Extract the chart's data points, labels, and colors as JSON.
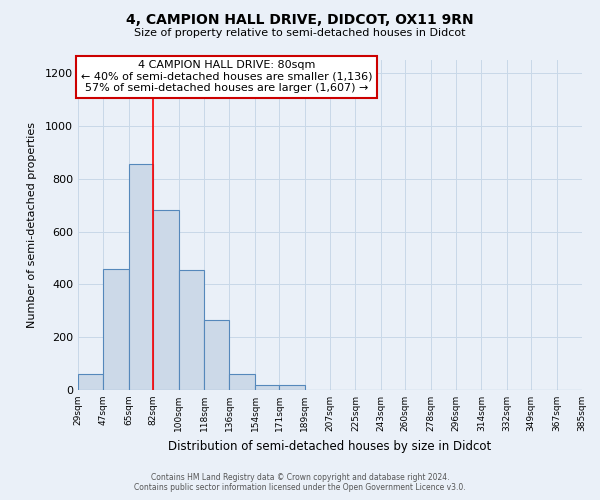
{
  "title": "4, CAMPION HALL DRIVE, DIDCOT, OX11 9RN",
  "subtitle": "Size of property relative to semi-detached houses in Didcot",
  "xlabel": "Distribution of semi-detached houses by size in Didcot",
  "ylabel": "Number of semi-detached properties",
  "bin_edges": [
    29,
    47,
    65,
    82,
    100,
    118,
    136,
    154,
    171,
    189,
    207,
    225,
    243,
    260,
    278,
    296,
    314,
    332,
    349,
    367,
    385
  ],
  "bar_heights": [
    60,
    460,
    855,
    680,
    455,
    265,
    60,
    18,
    18,
    0,
    0,
    0,
    0,
    0,
    0,
    0,
    0,
    0,
    0,
    0
  ],
  "bar_color": "#ccd9e8",
  "bar_edge_color": "#5588bb",
  "red_line_x": 82,
  "annotation_title": "4 CAMPION HALL DRIVE: 80sqm",
  "annotation_line1": "← 40% of semi-detached houses are smaller (1,136)",
  "annotation_line2": "57% of semi-detached houses are larger (1,607) →",
  "annotation_box_color": "#ffffff",
  "annotation_box_edge": "#cc0000",
  "ylim": [
    0,
    1250
  ],
  "yticks": [
    0,
    200,
    400,
    600,
    800,
    1000,
    1200
  ],
  "tick_labels": [
    "29sqm",
    "47sqm",
    "65sqm",
    "82sqm",
    "100sqm",
    "118sqm",
    "136sqm",
    "154sqm",
    "171sqm",
    "189sqm",
    "207sqm",
    "225sqm",
    "243sqm",
    "260sqm",
    "278sqm",
    "296sqm",
    "314sqm",
    "332sqm",
    "349sqm",
    "367sqm",
    "385sqm"
  ],
  "footer_line1": "Contains HM Land Registry data © Crown copyright and database right 2024.",
  "footer_line2": "Contains public sector information licensed under the Open Government Licence v3.0.",
  "background_color": "#eaf0f8",
  "grid_color": "#c8d8e8"
}
